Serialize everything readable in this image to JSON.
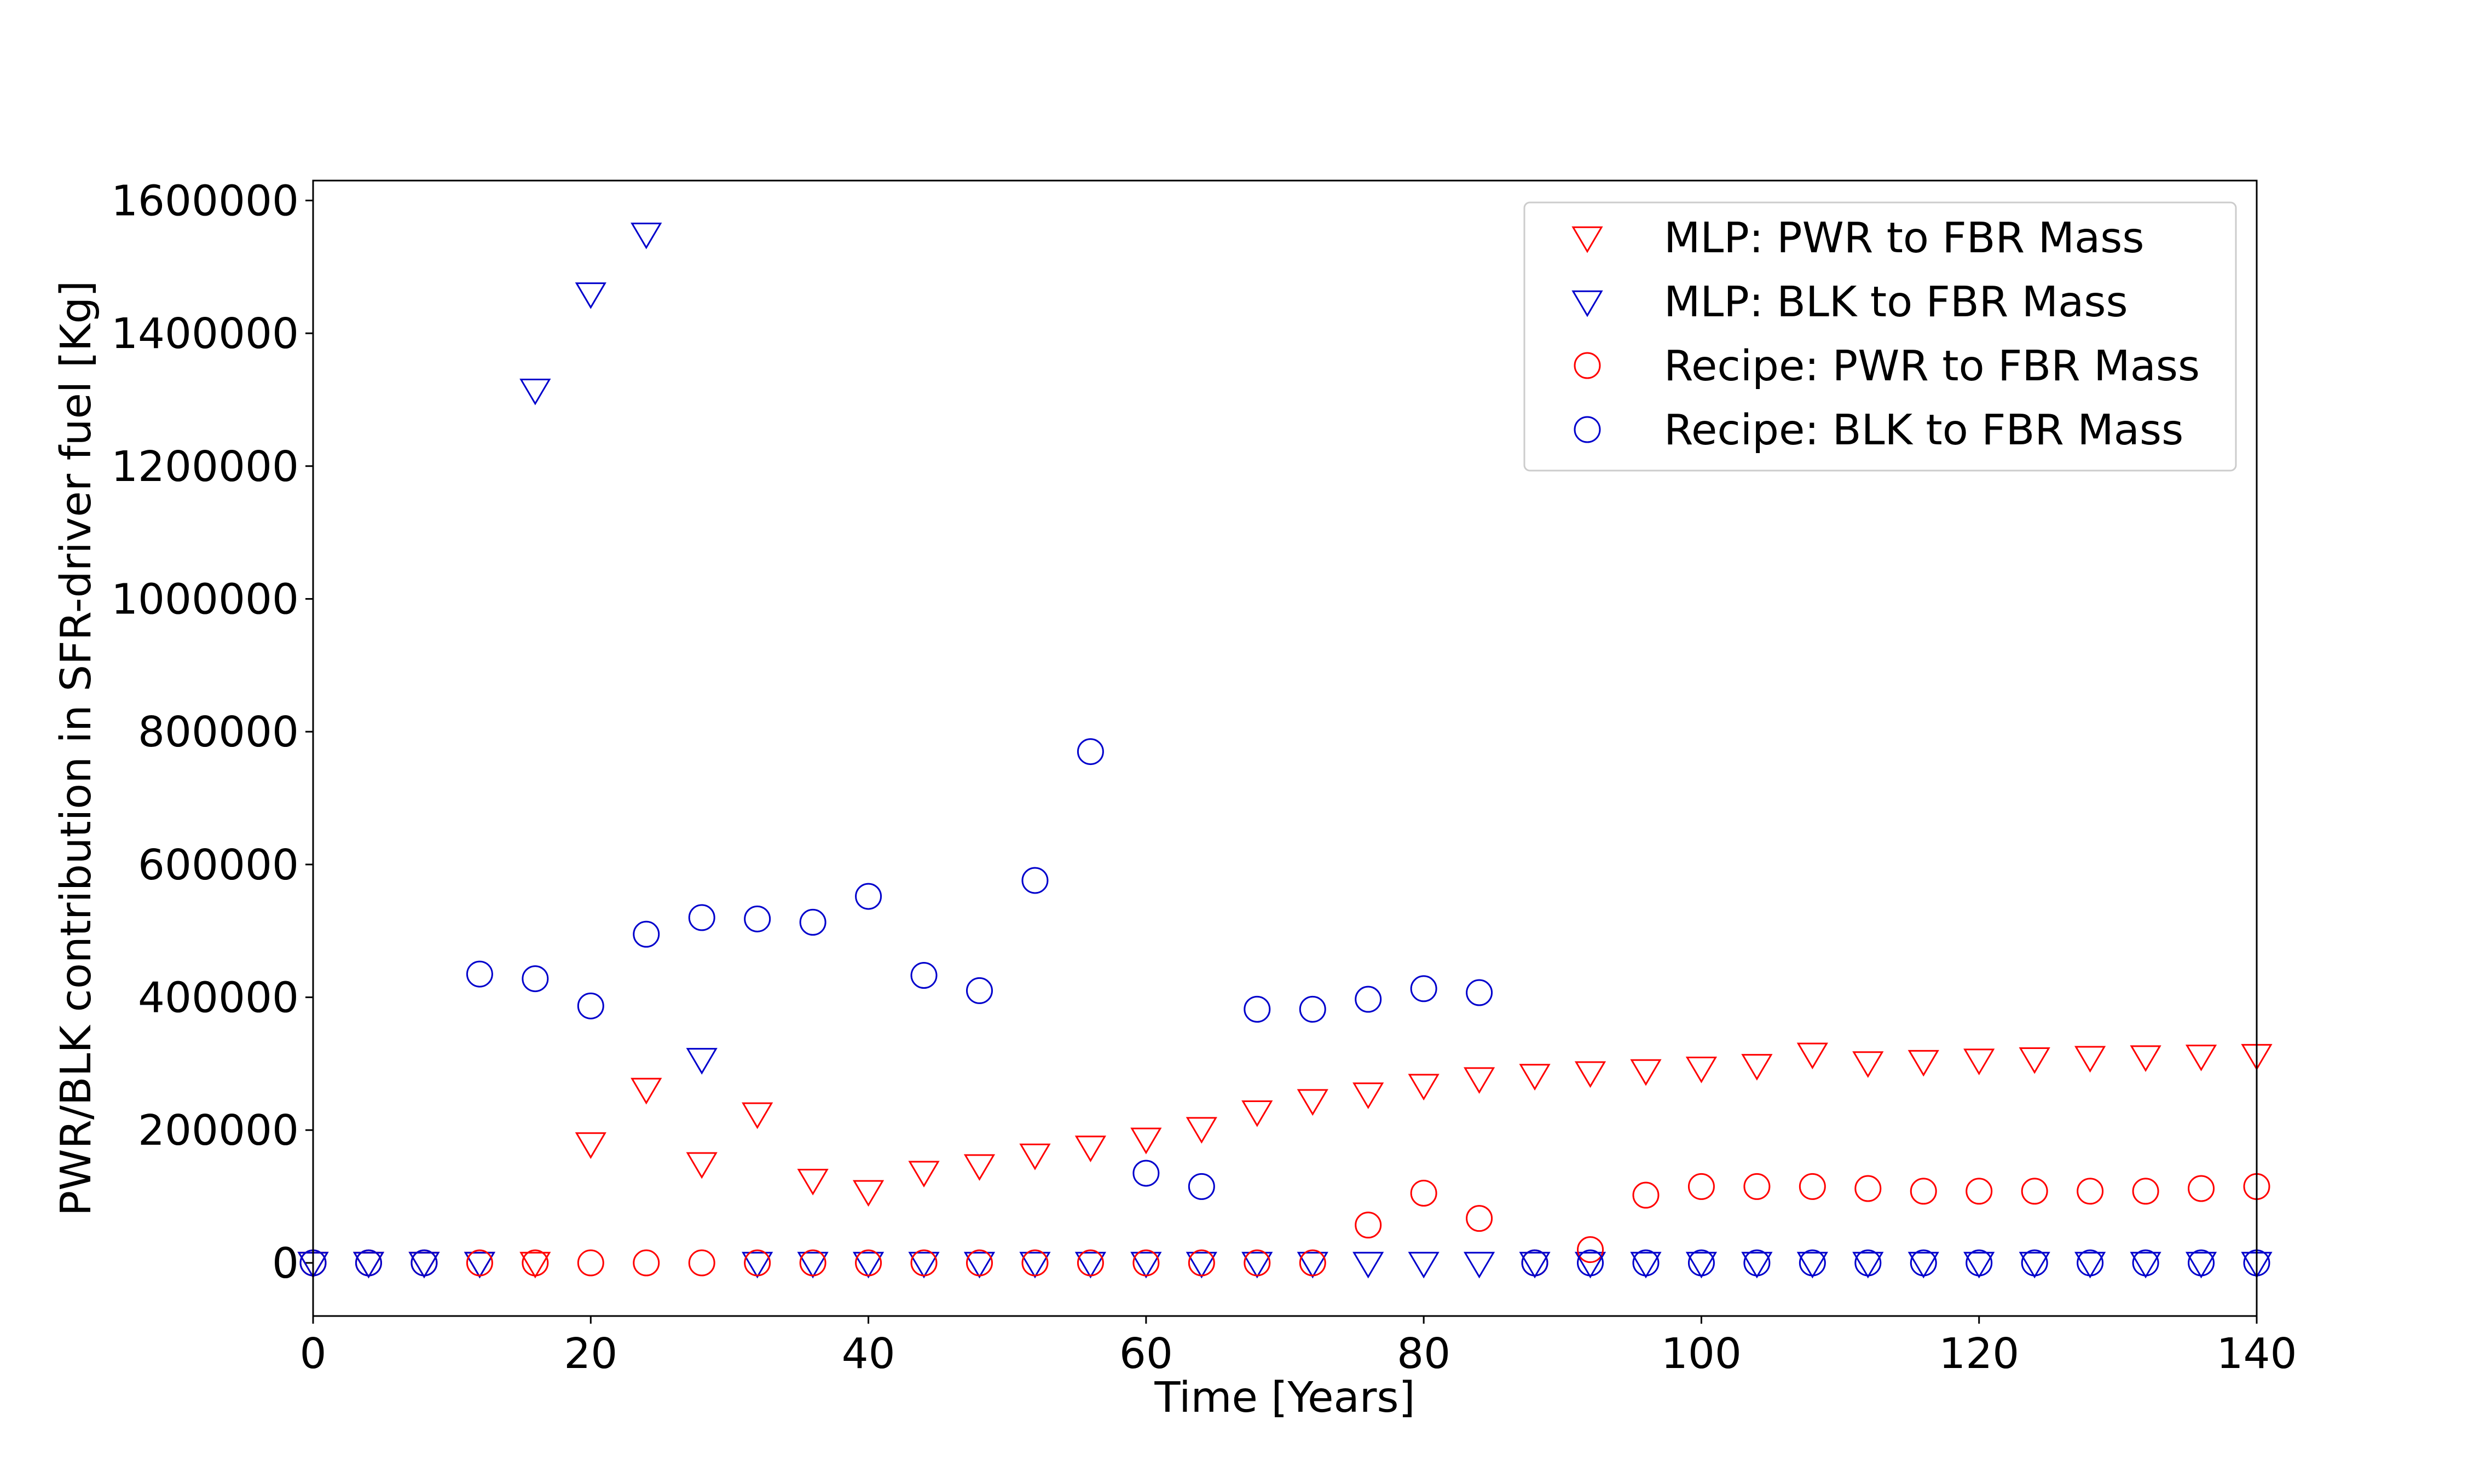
{
  "chart_data": {
    "type": "scatter",
    "title": "",
    "xlabel": "Time [Years]",
    "ylabel": "PWR/BLK contribution in SFR-driver fuel [Kg]",
    "xlim": [
      0,
      140
    ],
    "ylim": [
      -80000,
      1630000
    ],
    "xticks": [
      0,
      20,
      40,
      60,
      80,
      100,
      120,
      140
    ],
    "xtick_labels": [
      "0",
      "20",
      "40",
      "60",
      "80",
      "100",
      "120",
      "140"
    ],
    "yticks": [
      0,
      200000,
      400000,
      600000,
      800000,
      1000000,
      1200000,
      1400000,
      1600000
    ],
    "ytick_labels": [
      "0",
      "200000",
      "400000",
      "600000",
      "800000",
      "1000000",
      "1200000",
      "1400000",
      "1600000"
    ],
    "grid": false,
    "legend_position": "upper right",
    "series": [
      {
        "name": "MLP: PWR to FBR Mass",
        "marker": "triangle-down",
        "color": "#ff0000",
        "points": [
          [
            0,
            0
          ],
          [
            4,
            0
          ],
          [
            8,
            0
          ],
          [
            12,
            0
          ],
          [
            16,
            0
          ],
          [
            20,
            180000
          ],
          [
            24,
            262000
          ],
          [
            28,
            150000
          ],
          [
            32,
            225000
          ],
          [
            36,
            125000
          ],
          [
            40,
            108000
          ],
          [
            44,
            137000
          ],
          [
            48,
            147000
          ],
          [
            52,
            163000
          ],
          [
            56,
            175000
          ],
          [
            60,
            187000
          ],
          [
            64,
            203000
          ],
          [
            68,
            228000
          ],
          [
            72,
            245000
          ],
          [
            76,
            255000
          ],
          [
            80,
            268000
          ],
          [
            84,
            278000
          ],
          [
            88,
            283000
          ],
          [
            92,
            287000
          ],
          [
            96,
            290000
          ],
          [
            100,
            294000
          ],
          [
            104,
            298000
          ],
          [
            108,
            315000
          ],
          [
            112,
            302000
          ],
          [
            116,
            304000
          ],
          [
            120,
            306000
          ],
          [
            124,
            308000
          ],
          [
            128,
            310000
          ],
          [
            132,
            311000
          ],
          [
            136,
            312000
          ],
          [
            140,
            313000
          ]
        ]
      },
      {
        "name": "MLP: BLK to FBR Mass",
        "marker": "triangle-down",
        "color": "#0000cc",
        "points": [
          [
            0,
            0
          ],
          [
            4,
            0
          ],
          [
            8,
            0
          ],
          [
            12,
            0
          ],
          [
            16,
            1315000
          ],
          [
            20,
            1460000
          ],
          [
            24,
            1550000
          ],
          [
            28,
            307000
          ],
          [
            32,
            0
          ],
          [
            36,
            0
          ],
          [
            40,
            0
          ],
          [
            44,
            0
          ],
          [
            48,
            0
          ],
          [
            52,
            0
          ],
          [
            56,
            0
          ],
          [
            60,
            0
          ],
          [
            64,
            0
          ],
          [
            68,
            0
          ],
          [
            72,
            0
          ],
          [
            76,
            0
          ],
          [
            80,
            0
          ],
          [
            84,
            0
          ],
          [
            88,
            0
          ],
          [
            92,
            0
          ],
          [
            96,
            0
          ],
          [
            100,
            0
          ],
          [
            104,
            0
          ],
          [
            108,
            0
          ],
          [
            112,
            0
          ],
          [
            116,
            0
          ],
          [
            120,
            0
          ],
          [
            124,
            0
          ],
          [
            128,
            0
          ],
          [
            132,
            0
          ],
          [
            136,
            0
          ],
          [
            140,
            0
          ]
        ]
      },
      {
        "name": "Recipe: PWR to FBR Mass",
        "marker": "circle",
        "color": "#ff0000",
        "points": [
          [
            0,
            0
          ],
          [
            4,
            0
          ],
          [
            8,
            0
          ],
          [
            12,
            0
          ],
          [
            16,
            0
          ],
          [
            20,
            0
          ],
          [
            24,
            0
          ],
          [
            28,
            0
          ],
          [
            32,
            0
          ],
          [
            36,
            0
          ],
          [
            40,
            0
          ],
          [
            44,
            0
          ],
          [
            48,
            0
          ],
          [
            52,
            0
          ],
          [
            56,
            0
          ],
          [
            60,
            0
          ],
          [
            64,
            0
          ],
          [
            68,
            0
          ],
          [
            72,
            0
          ],
          [
            76,
            57000
          ],
          [
            80,
            105000
          ],
          [
            84,
            67000
          ],
          [
            88,
            0
          ],
          [
            92,
            20000
          ],
          [
            96,
            102000
          ],
          [
            100,
            115000
          ],
          [
            104,
            115000
          ],
          [
            108,
            115000
          ],
          [
            112,
            112000
          ],
          [
            116,
            108000
          ],
          [
            120,
            108000
          ],
          [
            124,
            108000
          ],
          [
            128,
            108000
          ],
          [
            132,
            108000
          ],
          [
            136,
            112000
          ],
          [
            140,
            115000
          ]
        ]
      },
      {
        "name": "Recipe: BLK to FBR Mass",
        "marker": "circle",
        "color": "#0000cc",
        "points": [
          [
            0,
            0
          ],
          [
            4,
            0
          ],
          [
            8,
            0
          ],
          [
            12,
            435000
          ],
          [
            16,
            428000
          ],
          [
            20,
            387000
          ],
          [
            24,
            495000
          ],
          [
            28,
            520000
          ],
          [
            32,
            518000
          ],
          [
            36,
            513000
          ],
          [
            40,
            552000
          ],
          [
            44,
            433000
          ],
          [
            48,
            410000
          ],
          [
            52,
            576000
          ],
          [
            56,
            770000
          ],
          [
            60,
            135000
          ],
          [
            64,
            115000
          ],
          [
            68,
            382000
          ],
          [
            72,
            382000
          ],
          [
            76,
            397000
          ],
          [
            80,
            413000
          ],
          [
            84,
            407000
          ],
          [
            88,
            0
          ],
          [
            92,
            0
          ],
          [
            96,
            0
          ],
          [
            100,
            0
          ],
          [
            104,
            0
          ],
          [
            108,
            0
          ],
          [
            112,
            0
          ],
          [
            116,
            0
          ],
          [
            120,
            0
          ],
          [
            124,
            0
          ],
          [
            128,
            0
          ],
          [
            132,
            0
          ],
          [
            136,
            0
          ],
          [
            140,
            0
          ]
        ]
      }
    ]
  }
}
